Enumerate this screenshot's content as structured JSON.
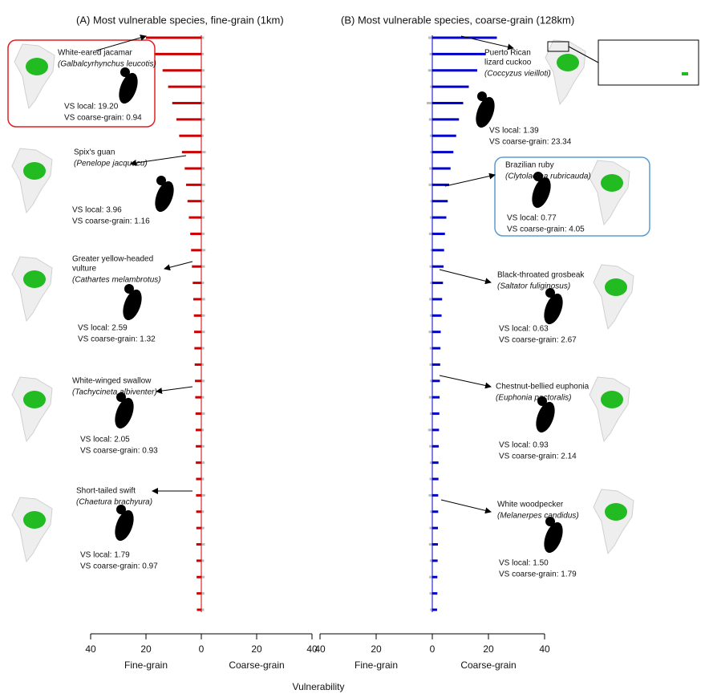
{
  "xlabel": "Vulnerability",
  "chart_data": [
    {
      "type": "bar",
      "orientation": "horizontal",
      "title": "(A) Most vulnerable species, fine-grain (1km)",
      "xlabel_left": "Fine-grain",
      "xlabel_right": "Coarse-grain",
      "xlim": [
        -40,
        40
      ],
      "xticks": [
        {
          "value": -40,
          "label": "40"
        },
        {
          "value": -20,
          "label": "20"
        },
        0,
        20,
        40
      ],
      "series": [
        {
          "color": "#cc0000",
          "values": [
            -20,
            -17,
            -14,
            -12,
            -10.5,
            -9,
            -8,
            -7,
            -6,
            -5.5,
            -5,
            -4.5,
            -4,
            -3.7,
            -3.4,
            -3.1,
            -2.9,
            -2.7,
            -2.6,
            -2.5,
            -2.4,
            -2.3,
            -2.2,
            -2.1,
            -2.05,
            -2,
            -2,
            -1.9,
            -1.9,
            -1.85,
            -1.8,
            -1.8,
            -1.75,
            -1.7,
            -1.7,
            -1.6
          ]
        },
        {
          "color": "#bbbbbb",
          "values": [
            1,
            0.9,
            1.2,
            1.5,
            1.1,
            1.3,
            0.8,
            1.6,
            1.2,
            1.4,
            1.1,
            1.2,
            1.2,
            1.5,
            1.3,
            1,
            1.4,
            1.3,
            1.3,
            1.1,
            0.9,
            1.2,
            1,
            1.3,
            0.9,
            1.1,
            1.2,
            1,
            1.4,
            0.97,
            1.1,
            1.3,
            1,
            1.2,
            1.1,
            1
          ]
        }
      ],
      "annotations": [
        {
          "name": [
            "White-eared jacamar"
          ],
          "species": "(Galbalcyrhynchus leucotis)",
          "vs_local": "VS local: 19.20",
          "vs_coarse": "VS coarse-grain: 0.94"
        },
        {
          "name": [
            "Spix's guan"
          ],
          "species": "(Penelope jacquacu)",
          "vs_local": "VS local: 3.96",
          "vs_coarse": "VS coarse-grain: 1.16"
        },
        {
          "name": [
            "Greater yellow-headed",
            "vulture"
          ],
          "species": "(Cathartes melambrotus)",
          "vs_local": "VS local: 2.59",
          "vs_coarse": "VS coarse-grain: 1.32"
        },
        {
          "name": [
            "White-winged swallow"
          ],
          "species": "(Tachycineta albiventer)",
          "vs_local": "VS local: 2.05",
          "vs_coarse": "VS coarse-grain: 0.93"
        },
        {
          "name": [
            "Short-tailed swift"
          ],
          "species": "(Chaetura brachyura)",
          "vs_local": "VS local: 1.79",
          "vs_coarse": "VS coarse-grain: 0.97"
        }
      ]
    },
    {
      "type": "bar",
      "orientation": "horizontal",
      "title": "(B) Most vulnerable species, coarse-grain (128km)",
      "xlabel_left": "Fine-grain",
      "xlabel_right": "Coarse-grain",
      "xlim": [
        -40,
        40
      ],
      "xticks": [
        {
          "value": -40,
          "label": "40"
        },
        {
          "value": -20,
          "label": "20"
        },
        0,
        20,
        40
      ],
      "series": [
        {
          "color": "#bbbbbb",
          "values": [
            -1.4,
            -1,
            -1.5,
            -0.8,
            -2,
            -1.2,
            -0.9,
            -0.77,
            -1.1,
            -1.3,
            -0.7,
            -0.9,
            -1.2,
            -0.63,
            -1,
            -0.8,
            -1.1,
            -0.9,
            -1.3,
            -0.93,
            -1,
            -0.8,
            -1.2,
            -0.9,
            -1.5,
            -1.1,
            -0.9,
            -1,
            -1.3,
            -0.8,
            -1,
            -1.2,
            -0.9,
            -1.1,
            -1,
            -0.8
          ]
        },
        {
          "color": "#0000cc",
          "values": [
            23,
            19,
            16,
            13,
            11,
            9.5,
            8.5,
            7.5,
            6.5,
            6,
            5.5,
            5,
            4.5,
            4.2,
            4,
            3.8,
            3.5,
            3.3,
            3,
            2.9,
            2.8,
            2.7,
            2.6,
            2.5,
            2.4,
            2.3,
            2.2,
            2.2,
            2.1,
            2.1,
            2,
            2,
            1.9,
            1.8,
            1.8,
            1.7
          ]
        }
      ],
      "annotations": [
        {
          "name": [
            "Puerto Rican",
            "lizard cuckoo"
          ],
          "species": "(Coccyzus vieilloti)",
          "vs_local": "VS local: 1.39",
          "vs_coarse": "VS coarse-grain: 23.34"
        },
        {
          "name": [
            "Brazilian ruby"
          ],
          "species": "(Clytolaema rubricauda)",
          "vs_local": "VS local: 0.77",
          "vs_coarse": "VS coarse-grain: 4.05"
        },
        {
          "name": [
            "Black-throated grosbeak"
          ],
          "species": "(Saltator fuliginosus)",
          "vs_local": "VS local: 0.63",
          "vs_coarse": "VS coarse-grain: 2.67"
        },
        {
          "name": [
            "Chestnut-bellied euphonia"
          ],
          "species": "(Euphonia pectoralis)",
          "vs_local": "VS local: 0.93",
          "vs_coarse": "VS coarse-grain: 2.14"
        },
        {
          "name": [
            "White woodpecker"
          ],
          "species": "(Melanerpes candidus)",
          "vs_local": "VS local: 1.50",
          "vs_coarse": "VS coarse-grain: 1.79"
        }
      ]
    }
  ]
}
